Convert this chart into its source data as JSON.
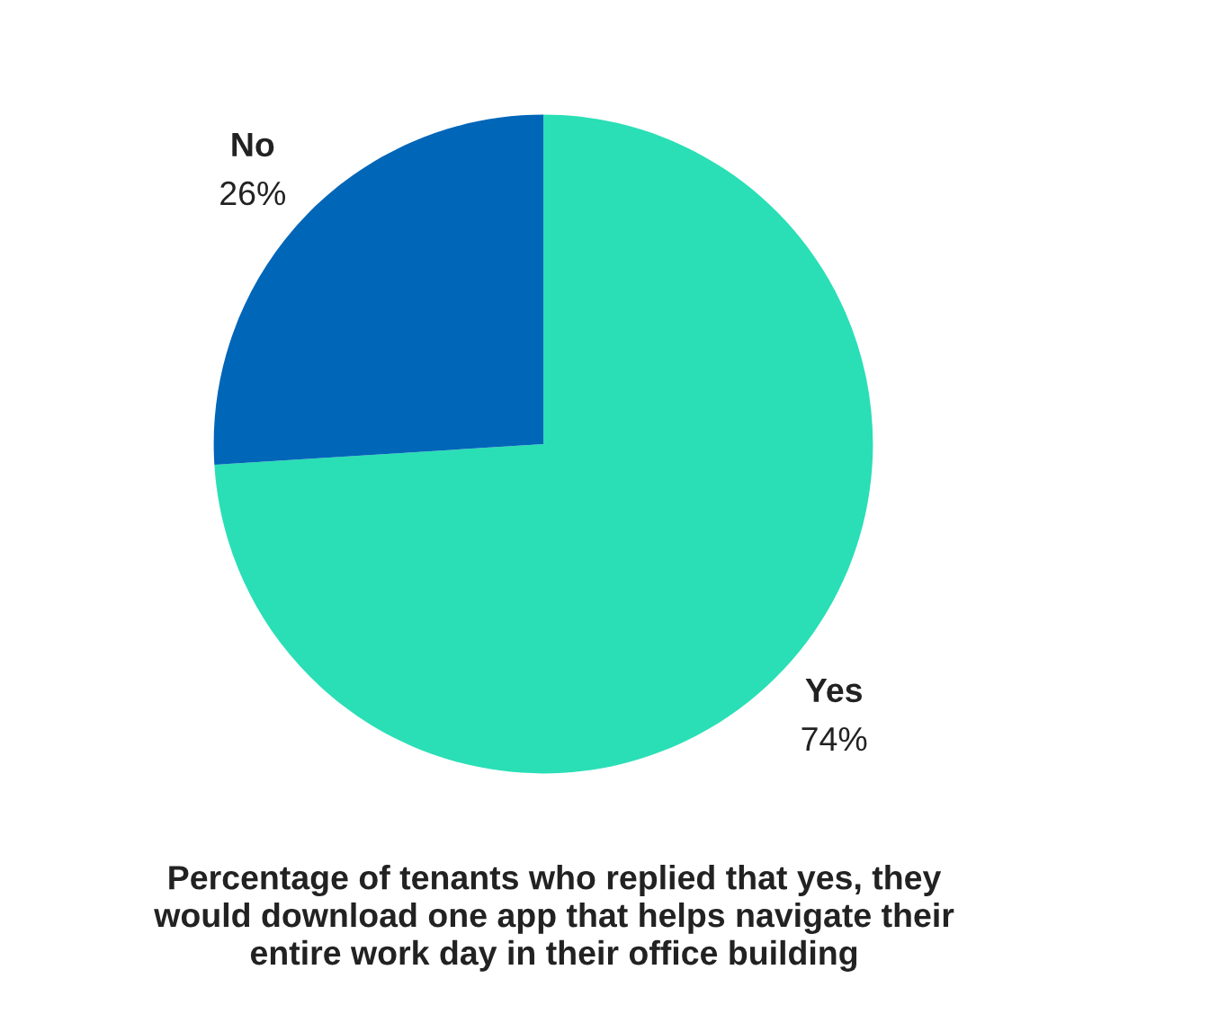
{
  "chart_data": {
    "type": "pie",
    "title": "Percentage of tenants who replied that yes, they would download one app that helps navigate their entire work day in their office building",
    "categories": [
      "Yes",
      "No"
    ],
    "values": [
      74,
      26
    ],
    "colors": [
      "#2adfb5",
      "#0066b8"
    ],
    "value_labels": [
      "74%",
      "26%"
    ]
  }
}
